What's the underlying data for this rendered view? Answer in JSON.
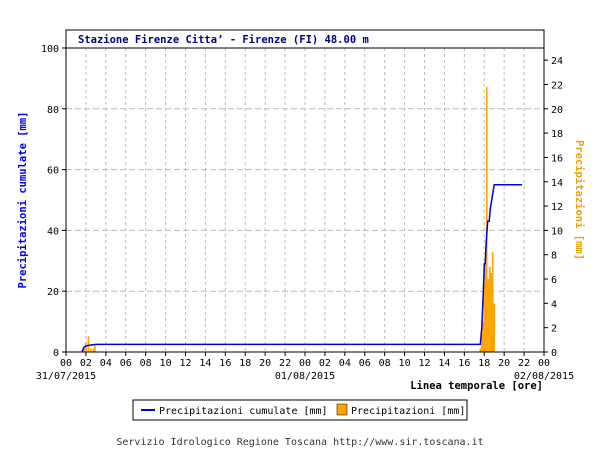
{
  "chart_data": {
    "type": "bar+line",
    "title": "Stazione Firenze Citta’ - Firenze (FI) 48.00 m",
    "xlabel": "Linea temporale [ore]",
    "ylabel_left": "Precipitazioni cumulate [mm]",
    "ylabel_right": "Precipitazioni [mm]",
    "x_hours_range": [
      0,
      48
    ],
    "x_tick_labels": [
      "00",
      "02",
      "04",
      "06",
      "08",
      "10",
      "12",
      "14",
      "16",
      "18",
      "20",
      "22",
      "00",
      "02",
      "04",
      "06",
      "08",
      "10",
      "12",
      "14",
      "16",
      "18",
      "20",
      "22",
      "00"
    ],
    "date_labels": [
      {
        "hour": 0,
        "text": "31/07/2015"
      },
      {
        "hour": 24,
        "text": "01/08/2015"
      },
      {
        "hour": 48,
        "text": "02/08/2015"
      }
    ],
    "ylim_left": [
      0,
      100
    ],
    "yticks_left": [
      0,
      20,
      40,
      60,
      80,
      100
    ],
    "ylim_right": [
      0,
      25
    ],
    "yticks_right": [
      0,
      2,
      4,
      6,
      8,
      10,
      12,
      14,
      16,
      18,
      20,
      22,
      24
    ],
    "grid": true,
    "colors": {
      "cumulative": "#0000e0",
      "bars": "#ffa500",
      "grid": "#bbbbbb"
    },
    "series": [
      {
        "name": "Precipitazioni cumulate [mm]",
        "type": "line",
        "axis": "left",
        "points": [
          [
            1.6,
            0
          ],
          [
            1.8,
            1.5
          ],
          [
            2.0,
            2.0
          ],
          [
            2.5,
            2.3
          ],
          [
            3.0,
            2.5
          ],
          [
            41.6,
            2.5
          ],
          [
            41.75,
            8
          ],
          [
            41.9,
            20
          ],
          [
            42.0,
            29
          ],
          [
            42.1,
            29
          ],
          [
            42.2,
            36
          ],
          [
            42.35,
            43
          ],
          [
            42.5,
            43
          ],
          [
            42.6,
            47
          ],
          [
            42.75,
            50
          ],
          [
            42.9,
            53
          ],
          [
            43.0,
            55
          ],
          [
            43.3,
            55
          ],
          [
            45.8,
            55
          ]
        ]
      },
      {
        "name": "Precipitazioni [mm]",
        "type": "bar",
        "axis": "right",
        "bar_width_hours": 0.08,
        "points": [
          [
            1.8,
            0.3
          ],
          [
            2.0,
            0.8
          ],
          [
            2.25,
            1.3
          ],
          [
            2.5,
            0.3
          ],
          [
            2.75,
            0.3
          ],
          [
            2.9,
            0.6
          ],
          [
            41.6,
            0.3
          ],
          [
            41.75,
            1.5
          ],
          [
            41.9,
            2.5
          ],
          [
            42.0,
            6.5
          ],
          [
            42.1,
            7.5
          ],
          [
            42.25,
            21.8
          ],
          [
            42.4,
            6.0
          ],
          [
            42.55,
            7.0
          ],
          [
            42.7,
            6.5
          ],
          [
            42.85,
            8.2
          ],
          [
            43.0,
            4.0
          ]
        ]
      }
    ],
    "legend": {
      "placement": "bottom-center",
      "entries": [
        "Precipitazioni cumulate [mm]",
        "Precipitazioni [mm]"
      ]
    }
  },
  "footer": "Servizio Idrologico Regione Toscana http://www.sir.toscana.it"
}
